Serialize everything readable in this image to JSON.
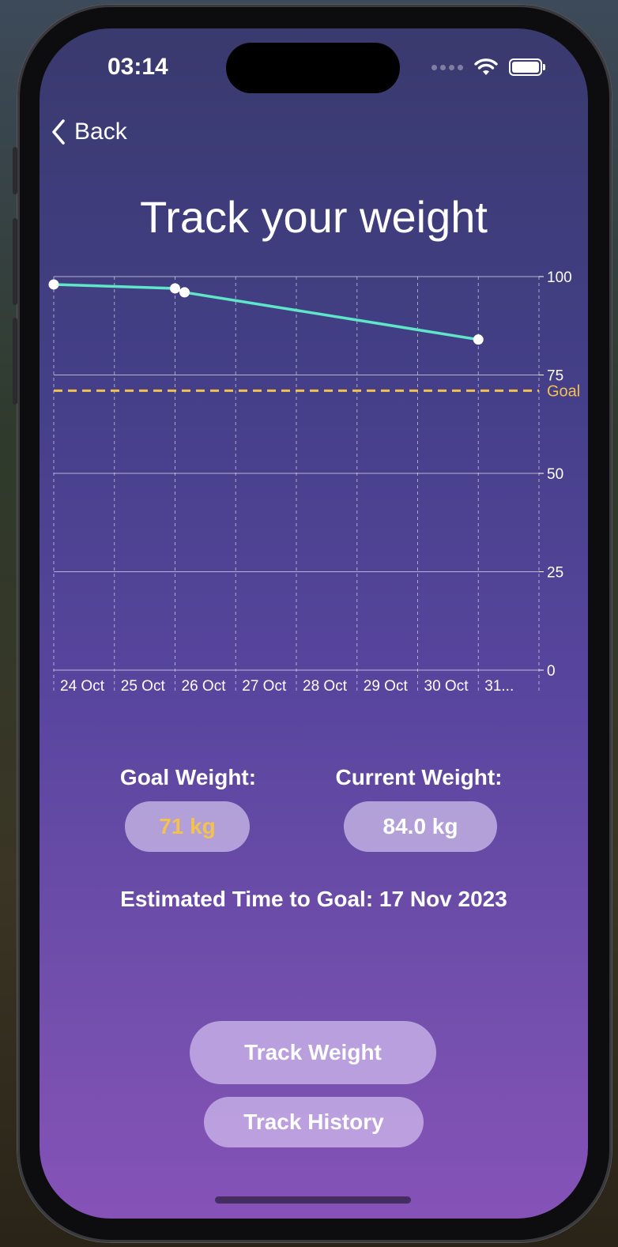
{
  "status": {
    "time": "03:14"
  },
  "nav": {
    "back_label": "Back"
  },
  "page": {
    "title": "Track your weight"
  },
  "chart_data": {
    "type": "line",
    "x_labels": [
      "24 Oct",
      "25 Oct",
      "26 Oct",
      "27 Oct",
      "28 Oct",
      "29 Oct",
      "30 Oct",
      "31..."
    ],
    "y_ticks": [
      100,
      75,
      50,
      25,
      0
    ],
    "ylim": [
      0,
      100
    ],
    "points": [
      {
        "x": "2023-10-24",
        "y": 98.0
      },
      {
        "x": "2023-10-26",
        "y": 97.0
      },
      {
        "x": "2023-10-26",
        "y": 96.0
      },
      {
        "x": "2023-10-31",
        "y": 84.0
      }
    ],
    "goal": {
      "label": "Goal",
      "value": 71
    },
    "colors": {
      "line": "#5ee6c8",
      "goal": "#f2c14e",
      "grid": "#ffffff"
    }
  },
  "goal_weight": {
    "label": "Goal Weight:",
    "value": "71 kg",
    "color": "#f2c14e"
  },
  "current_weight": {
    "label": "Current Weight:",
    "value": "84.0 kg"
  },
  "estimate": {
    "text": "Estimated Time to Goal: 17 Nov 2023"
  },
  "buttons": {
    "track_weight": "Track Weight",
    "track_history": "Track History"
  }
}
